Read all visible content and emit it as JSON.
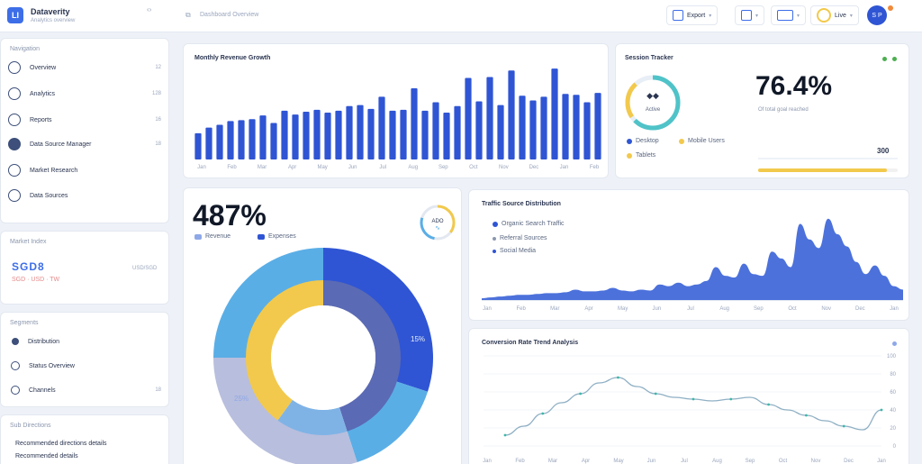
{
  "header": {
    "logo_text": "LI",
    "app_title": "Dataverity",
    "app_subtitle": "Analytics overview",
    "collapse_glyph": "‹›",
    "breadcrumb": "Dashboard Overview",
    "btn_export": "Export",
    "btn_view_label": "",
    "btn_filter_label": "",
    "status_label": "Live",
    "avatar_initials": "S P"
  },
  "sidebar": {
    "nav_heading": "Navigation",
    "items": [
      {
        "label": "Overview",
        "count": "12",
        "icon": "globe-icon"
      },
      {
        "label": "Analytics",
        "count": "128",
        "icon": "chart-icon"
      },
      {
        "label": "Reports",
        "count": "16",
        "icon": "user-icon"
      },
      {
        "label": "Data Source Manager",
        "count": "18",
        "icon": "database-icon"
      },
      {
        "label": "Market Research",
        "count": "",
        "icon": "settings-icon"
      },
      {
        "label": "Data Sources",
        "count": "",
        "icon": "share-icon"
      }
    ],
    "market_heading": "Market Index",
    "ticker": "SGD8",
    "ticker_sub": "SGD · USD · TW",
    "ticker_right": "USD/SGD",
    "section_heading": "Segments",
    "segments": [
      {
        "label": "Distribution",
        "count": ""
      },
      {
        "label": "Status Overview",
        "count": ""
      },
      {
        "label": "Channels",
        "count": "18"
      }
    ],
    "footer_heading": "Sub Directions",
    "footer_lines": [
      "Recommended directions details",
      "Recommended details"
    ]
  },
  "bar_panel": {
    "title": "Monthly Revenue Growth"
  },
  "kpi_panel": {
    "title": "Session Tracker",
    "ring_label": "Active",
    "big_value": "76.4%",
    "sub_text": "Of total goal reached",
    "legend": [
      {
        "label": "Desktop",
        "color": "#2f55d4"
      },
      {
        "label": "Mobile Users",
        "color": "#f2c94c"
      },
      {
        "label": "Tablets",
        "color": "#f2c94c"
      }
    ],
    "bar_value": "300",
    "progress": 0.92
  },
  "donut_panel": {
    "big_value": "487%",
    "legend": [
      {
        "label": "Revenue",
        "color": "#8ea8e8"
      },
      {
        "label": "Expenses",
        "color": "#2f55d4"
      }
    ],
    "badge_label": "ADO",
    "inner_label_right": "15%",
    "inner_label_left": "25%"
  },
  "area_panel": {
    "title": "Traffic Source Distribution",
    "legend": [
      {
        "label": "Organic Search Traffic",
        "color": "#2f55d4"
      },
      {
        "label": "Referral Sources",
        "color": "#8b97ad"
      },
      {
        "label": "Social Media",
        "color": "#2f55d4"
      }
    ],
    "x_labels": [
      "Jan",
      "Feb",
      "Mar",
      "Apr",
      "May",
      "Jun",
      "Jul",
      "Aug",
      "Sep",
      "Oct",
      "Nov",
      "Dec",
      "Jan"
    ]
  },
  "line_panel": {
    "title": "Conversion Rate Trend Analysis",
    "x_labels": [
      "Jan",
      "Feb",
      "Mar",
      "Apr",
      "May",
      "Jun",
      "Jul",
      "Aug",
      "Sep",
      "Oct",
      "Nov",
      "Dec",
      "Jan"
    ],
    "y_labels": [
      "100",
      "80",
      "60",
      "40",
      "20",
      "0"
    ]
  },
  "chart_data": [
    {
      "type": "bar",
      "title": "Monthly Revenue Growth",
      "categories": [
        "Jan",
        "Feb",
        "Mar",
        "Apr",
        "May",
        "Jun",
        "Jul",
        "Aug",
        "Sep",
        "Oct",
        "Nov",
        "Dec",
        "Jan",
        "Feb",
        "Mar",
        "Apr",
        "May",
        "Jun",
        "Jul",
        "Aug",
        "Sep",
        "Oct",
        "Nov",
        "Dec",
        "Jan",
        "Feb",
        "Mar",
        "Apr",
        "May",
        "Jun",
        "Jul",
        "Aug",
        "Sep",
        "Oct",
        "Nov",
        "Dec",
        "Jan",
        "Feb"
      ],
      "x_labels": [
        "Jan",
        "Feb",
        "Mar",
        "Apr",
        "May",
        "Jun",
        "Jul",
        "Aug",
        "Sep",
        "Oct",
        "Nov",
        "Dec",
        "Jan",
        "Feb"
      ],
      "values": [
        28,
        34,
        37,
        41,
        42,
        43,
        47,
        39,
        52,
        48,
        51,
        53,
        50,
        52,
        57,
        58,
        54,
        67,
        52,
        53,
        76,
        52,
        61,
        50,
        57,
        87,
        62,
        88,
        58,
        95,
        68,
        63,
        67,
        97,
        70,
        69,
        61,
        71
      ],
      "color": "#2f55d4",
      "ylim": [
        0,
        100
      ]
    },
    {
      "type": "pie",
      "title": "",
      "slices": [
        {
          "value": 30,
          "color": "#2f55d4"
        },
        {
          "value": 15,
          "color": "#5aaee6"
        },
        {
          "value": 30,
          "color": "#b8bedd"
        },
        {
          "value": 25,
          "color": "#5aaee6"
        }
      ],
      "inner_slices": [
        {
          "value": 45,
          "color": "#5b6ab4"
        },
        {
          "value": 15,
          "color": "#7fb3e6"
        },
        {
          "value": 40,
          "color": "#f2c94c"
        }
      ]
    },
    {
      "type": "area",
      "title": "Traffic Source Distribution",
      "values": [
        2,
        3,
        4,
        5,
        6,
        6,
        7,
        8,
        8,
        9,
        12,
        10,
        10,
        11,
        14,
        11,
        10,
        12,
        11,
        18,
        16,
        20,
        16,
        18,
        22,
        38,
        28,
        26,
        42,
        30,
        28,
        56,
        48,
        38,
        88,
        70,
        60,
        94,
        76,
        62,
        44,
        30,
        40,
        28,
        16,
        12
      ],
      "color": "#3d65d8",
      "ylim": [
        0,
        100
      ]
    },
    {
      "type": "line",
      "title": "Conversion Rate Trend Analysis",
      "values": [
        12,
        22,
        36,
        48,
        58,
        70,
        76,
        66,
        58,
        54,
        52,
        50,
        52,
        54,
        46,
        40,
        34,
        28,
        22,
        18,
        40
      ],
      "color": "#8fb0c4",
      "ylim": [
        0,
        100
      ]
    }
  ]
}
